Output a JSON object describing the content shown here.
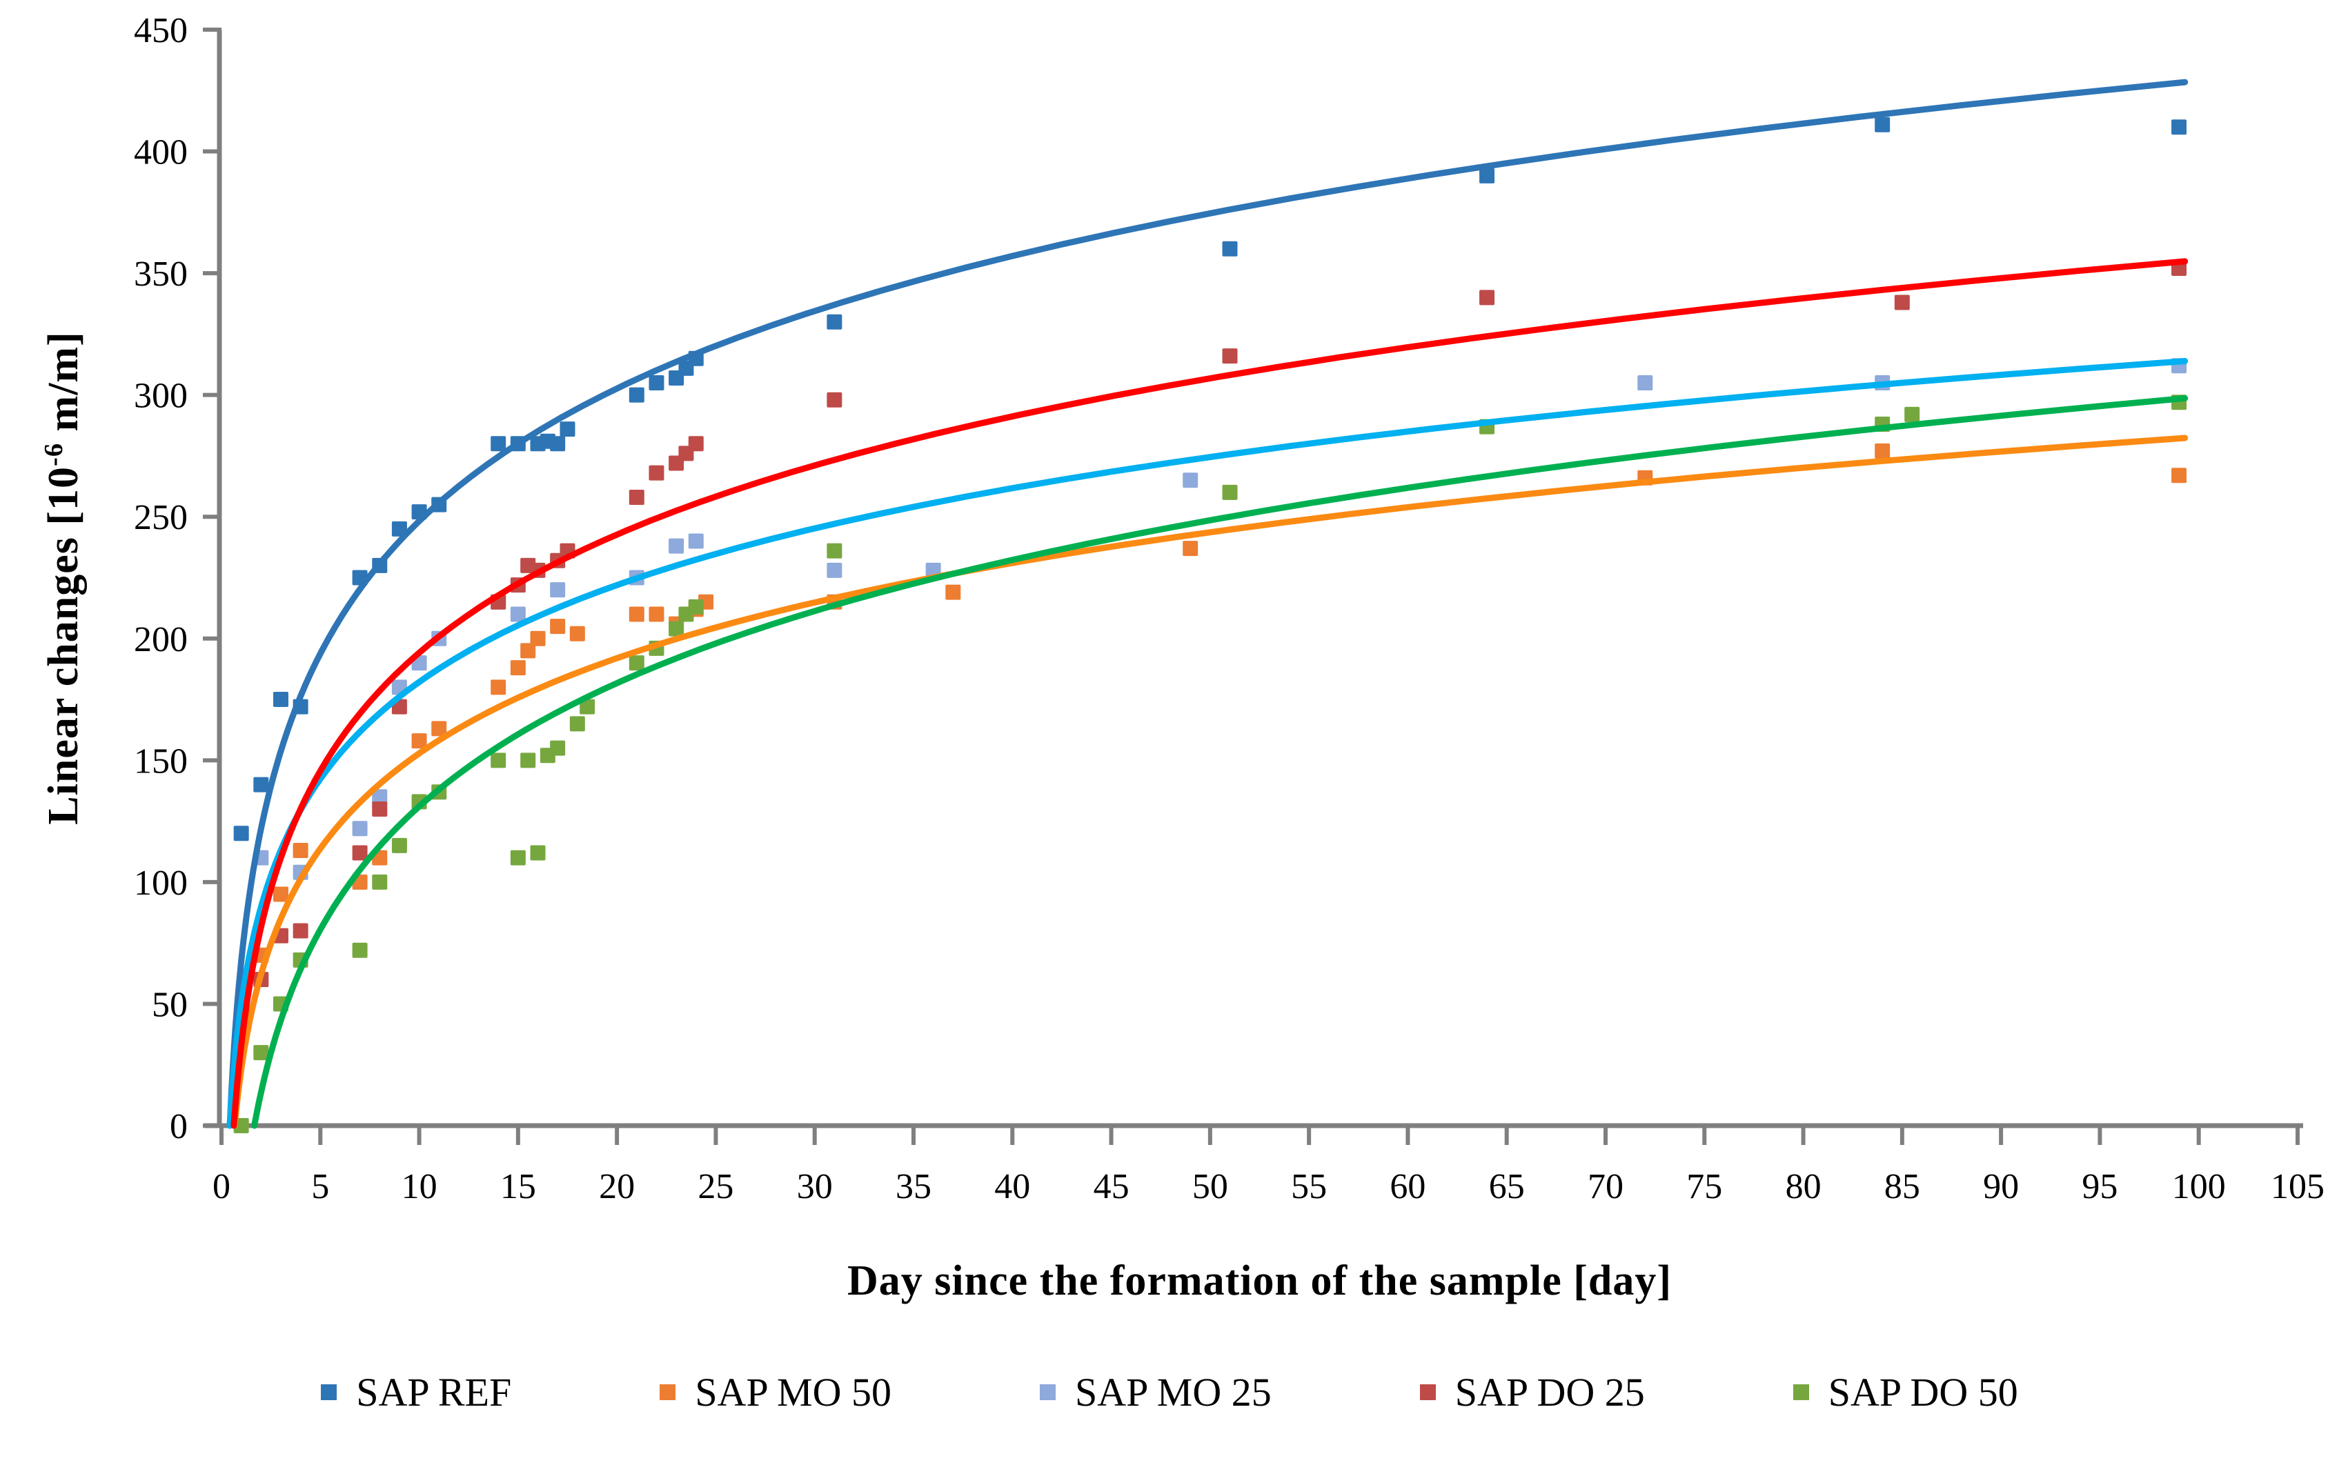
{
  "figure": {
    "background": "#ffffff",
    "axis_color": "#7F7F7F",
    "text_color": "#000000"
  },
  "labels": {
    "y_prefix": "Linear changes [10",
    "y_sup": "-6",
    "y_suffix": " m/m]",
    "x_title": "Day since the formation of the sample [day]"
  },
  "chart_data": {
    "type": "scatter",
    "title": "",
    "xlabel": "Day since the formation of the sample [day]",
    "ylabel": "Linear changes [10⁻⁶ m/m]",
    "xlim": [
      0,
      105
    ],
    "ylim": [
      0,
      450
    ],
    "x_ticks": [
      0,
      5,
      10,
      15,
      20,
      25,
      30,
      35,
      40,
      45,
      50,
      55,
      60,
      65,
      70,
      75,
      80,
      85,
      90,
      95,
      100,
      105
    ],
    "y_ticks": [
      0,
      50,
      100,
      150,
      200,
      250,
      300,
      350,
      400,
      450
    ],
    "grid": false,
    "legend_position": "bottom",
    "trendline_type": "logarithmic",
    "series": [
      {
        "name": "SAP REF",
        "marker_color": "#2E75B6",
        "line_color": "#2E75B6",
        "trendline": {
          "a": 78.5,
          "b": 67.5,
          "x_end": 99.3
        },
        "points": [
          [
            1,
            120
          ],
          [
            2,
            140
          ],
          [
            3,
            175
          ],
          [
            4,
            172
          ],
          [
            7,
            225
          ],
          [
            8,
            230
          ],
          [
            9,
            245
          ],
          [
            10,
            252
          ],
          [
            11,
            255
          ],
          [
            14,
            280
          ],
          [
            15,
            280
          ],
          [
            16,
            280
          ],
          [
            16.5,
            281
          ],
          [
            17,
            280
          ],
          [
            17.5,
            286
          ],
          [
            21,
            300
          ],
          [
            22,
            305
          ],
          [
            23,
            307
          ],
          [
            23.5,
            311
          ],
          [
            24,
            315
          ],
          [
            31,
            330
          ],
          [
            51,
            360
          ],
          [
            64,
            390
          ],
          [
            84,
            411
          ],
          [
            99,
            410
          ]
        ]
      },
      {
        "name": "SAP MO 50",
        "marker_color": "#ED7D31",
        "line_color": "#FB8A13",
        "trendline": {
          "a": 56.4,
          "b": 23,
          "x_end": 99.3
        },
        "points": [
          [
            2,
            70
          ],
          [
            3,
            95
          ],
          [
            4,
            113
          ],
          [
            7,
            100
          ],
          [
            8,
            110
          ],
          [
            10,
            158
          ],
          [
            11,
            163
          ],
          [
            14,
            180
          ],
          [
            15,
            188
          ],
          [
            15.5,
            195
          ],
          [
            16,
            200
          ],
          [
            17,
            205
          ],
          [
            18,
            202
          ],
          [
            21,
            210
          ],
          [
            22,
            210
          ],
          [
            23,
            206
          ],
          [
            24,
            212
          ],
          [
            24.5,
            215
          ],
          [
            31,
            215
          ],
          [
            37,
            219
          ],
          [
            49,
            237
          ],
          [
            72,
            266
          ],
          [
            84,
            277
          ],
          [
            99,
            267
          ]
        ]
      },
      {
        "name": "SAP MO 25",
        "marker_color": "#8EA9DB",
        "line_color": "#00B0F0",
        "trendline": {
          "a": 57.4,
          "b": 50,
          "x_end": 99.3
        },
        "points": [
          [
            2,
            110
          ],
          [
            4,
            104
          ],
          [
            7,
            122
          ],
          [
            8,
            135
          ],
          [
            9,
            180
          ],
          [
            10,
            190
          ],
          [
            11,
            200
          ],
          [
            14,
            215
          ],
          [
            15,
            210
          ],
          [
            17,
            220
          ],
          [
            21,
            225
          ],
          [
            23,
            238
          ],
          [
            24,
            240
          ],
          [
            31,
            228
          ],
          [
            36,
            228
          ],
          [
            49,
            265
          ],
          [
            72,
            305
          ],
          [
            84,
            305
          ],
          [
            99,
            312
          ]
        ]
      },
      {
        "name": "SAP DO 25",
        "marker_color": "#BE4B48",
        "line_color": "#FF0000",
        "trendline": {
          "a": 70,
          "b": 33,
          "x_end": 99.3
        },
        "points": [
          [
            2,
            60
          ],
          [
            3,
            78
          ],
          [
            4,
            80
          ],
          [
            7,
            112
          ],
          [
            8,
            130
          ],
          [
            9,
            172
          ],
          [
            14,
            215
          ],
          [
            15,
            222
          ],
          [
            15.5,
            230
          ],
          [
            16,
            228
          ],
          [
            17,
            232
          ],
          [
            17.5,
            236
          ],
          [
            21,
            258
          ],
          [
            22,
            268
          ],
          [
            23,
            272
          ],
          [
            23.5,
            276
          ],
          [
            24,
            280
          ],
          [
            31,
            298
          ],
          [
            51,
            316
          ],
          [
            64,
            340
          ],
          [
            85,
            338
          ],
          [
            99,
            352
          ]
        ]
      },
      {
        "name": "SAP DO 50",
        "marker_color": "#76A73F",
        "line_color": "#00B050",
        "trendline": {
          "a": 73,
          "b": -37,
          "x_end": 99.3
        },
        "points": [
          [
            1,
            0
          ],
          [
            2,
            30
          ],
          [
            3,
            50
          ],
          [
            4,
            68
          ],
          [
            7,
            72
          ],
          [
            8,
            100
          ],
          [
            9,
            115
          ],
          [
            10,
            133
          ],
          [
            11,
            137
          ],
          [
            14,
            150
          ],
          [
            15,
            110
          ],
          [
            15.5,
            150
          ],
          [
            16,
            112
          ],
          [
            16.5,
            152
          ],
          [
            17,
            155
          ],
          [
            18,
            165
          ],
          [
            18.5,
            172
          ],
          [
            21,
            190
          ],
          [
            22,
            196
          ],
          [
            23,
            204
          ],
          [
            23.5,
            210
          ],
          [
            24,
            213
          ],
          [
            31,
            236
          ],
          [
            51,
            260
          ],
          [
            64,
            287
          ],
          [
            84,
            288
          ],
          [
            85.5,
            292
          ],
          [
            99,
            297
          ]
        ]
      }
    ]
  }
}
